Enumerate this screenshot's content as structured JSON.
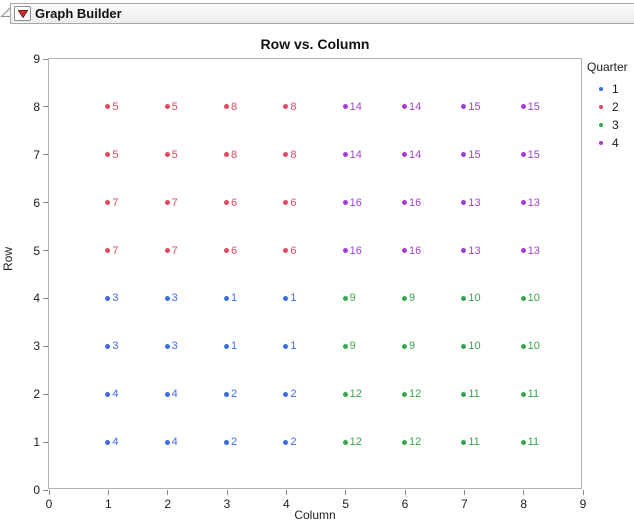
{
  "header": {
    "title": "Graph Builder",
    "disclosure_icon": "open-outline-triangle",
    "menu_icon": "red-triangle"
  },
  "chart_data": {
    "type": "scatter",
    "title": "Row vs. Column",
    "xlabel": "Column",
    "ylabel": "Row",
    "xlim": [
      0,
      9
    ],
    "ylim": [
      0,
      9
    ],
    "xticks": [
      0,
      1,
      2,
      3,
      4,
      5,
      6,
      7,
      8,
      9
    ],
    "yticks": [
      0,
      1,
      2,
      3,
      4,
      5,
      6,
      7,
      8,
      9
    ],
    "grid": false,
    "legend": {
      "title": "Quarter",
      "position": "right",
      "items": [
        {
          "label": "1",
          "color": "#3E6BE0"
        },
        {
          "label": "2",
          "color": "#DE4A5E"
        },
        {
          "label": "3",
          "color": "#35A74A"
        },
        {
          "label": "4",
          "color": "#A13FD4"
        }
      ]
    },
    "series": [
      {
        "name": "1",
        "color": "#3E6BE0",
        "points": [
          {
            "x": 1,
            "y": 4,
            "label": "3"
          },
          {
            "x": 2,
            "y": 4,
            "label": "3"
          },
          {
            "x": 3,
            "y": 4,
            "label": "1"
          },
          {
            "x": 4,
            "y": 4,
            "label": "1"
          },
          {
            "x": 1,
            "y": 3,
            "label": "3"
          },
          {
            "x": 2,
            "y": 3,
            "label": "3"
          },
          {
            "x": 3,
            "y": 3,
            "label": "1"
          },
          {
            "x": 4,
            "y": 3,
            "label": "1"
          },
          {
            "x": 1,
            "y": 2,
            "label": "4"
          },
          {
            "x": 2,
            "y": 2,
            "label": "4"
          },
          {
            "x": 3,
            "y": 2,
            "label": "2"
          },
          {
            "x": 4,
            "y": 2,
            "label": "2"
          },
          {
            "x": 1,
            "y": 1,
            "label": "4"
          },
          {
            "x": 2,
            "y": 1,
            "label": "4"
          },
          {
            "x": 3,
            "y": 1,
            "label": "2"
          },
          {
            "x": 4,
            "y": 1,
            "label": "2"
          }
        ]
      },
      {
        "name": "2",
        "color": "#DE4A5E",
        "points": [
          {
            "x": 1,
            "y": 8,
            "label": "5"
          },
          {
            "x": 2,
            "y": 8,
            "label": "5"
          },
          {
            "x": 3,
            "y": 8,
            "label": "8"
          },
          {
            "x": 4,
            "y": 8,
            "label": "8"
          },
          {
            "x": 1,
            "y": 7,
            "label": "5"
          },
          {
            "x": 2,
            "y": 7,
            "label": "5"
          },
          {
            "x": 3,
            "y": 7,
            "label": "8"
          },
          {
            "x": 4,
            "y": 7,
            "label": "8"
          },
          {
            "x": 1,
            "y": 6,
            "label": "7"
          },
          {
            "x": 2,
            "y": 6,
            "label": "7"
          },
          {
            "x": 3,
            "y": 6,
            "label": "6"
          },
          {
            "x": 4,
            "y": 6,
            "label": "6"
          },
          {
            "x": 1,
            "y": 5,
            "label": "7"
          },
          {
            "x": 2,
            "y": 5,
            "label": "7"
          },
          {
            "x": 3,
            "y": 5,
            "label": "6"
          },
          {
            "x": 4,
            "y": 5,
            "label": "6"
          }
        ]
      },
      {
        "name": "3",
        "color": "#35A74A",
        "points": [
          {
            "x": 5,
            "y": 4,
            "label": "9"
          },
          {
            "x": 6,
            "y": 4,
            "label": "9"
          },
          {
            "x": 7,
            "y": 4,
            "label": "10"
          },
          {
            "x": 8,
            "y": 4,
            "label": "10"
          },
          {
            "x": 5,
            "y": 3,
            "label": "9"
          },
          {
            "x": 6,
            "y": 3,
            "label": "9"
          },
          {
            "x": 7,
            "y": 3,
            "label": "10"
          },
          {
            "x": 8,
            "y": 3,
            "label": "10"
          },
          {
            "x": 5,
            "y": 2,
            "label": "12"
          },
          {
            "x": 6,
            "y": 2,
            "label": "12"
          },
          {
            "x": 7,
            "y": 2,
            "label": "11"
          },
          {
            "x": 8,
            "y": 2,
            "label": "11"
          },
          {
            "x": 5,
            "y": 1,
            "label": "12"
          },
          {
            "x": 6,
            "y": 1,
            "label": "12"
          },
          {
            "x": 7,
            "y": 1,
            "label": "11"
          },
          {
            "x": 8,
            "y": 1,
            "label": "11"
          }
        ]
      },
      {
        "name": "4",
        "color": "#A13FD4",
        "points": [
          {
            "x": 5,
            "y": 8,
            "label": "14"
          },
          {
            "x": 6,
            "y": 8,
            "label": "14"
          },
          {
            "x": 7,
            "y": 8,
            "label": "15"
          },
          {
            "x": 8,
            "y": 8,
            "label": "15"
          },
          {
            "x": 5,
            "y": 7,
            "label": "14"
          },
          {
            "x": 6,
            "y": 7,
            "label": "14"
          },
          {
            "x": 7,
            "y": 7,
            "label": "15"
          },
          {
            "x": 8,
            "y": 7,
            "label": "15"
          },
          {
            "x": 5,
            "y": 6,
            "label": "16"
          },
          {
            "x": 6,
            "y": 6,
            "label": "16"
          },
          {
            "x": 7,
            "y": 6,
            "label": "13"
          },
          {
            "x": 8,
            "y": 6,
            "label": "13"
          },
          {
            "x": 5,
            "y": 5,
            "label": "16"
          },
          {
            "x": 6,
            "y": 5,
            "label": "16"
          },
          {
            "x": 7,
            "y": 5,
            "label": "13"
          },
          {
            "x": 8,
            "y": 5,
            "label": "13"
          }
        ]
      }
    ]
  }
}
